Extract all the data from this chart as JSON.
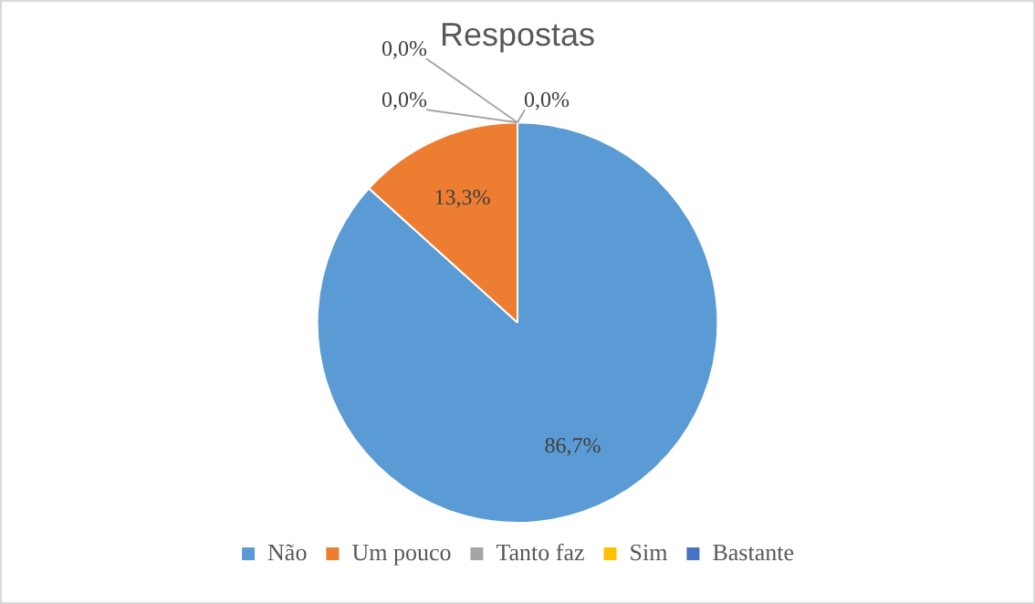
{
  "chart_data": {
    "type": "pie",
    "title": "Respostas",
    "categories": [
      "Não",
      "Um pouco",
      "Tanto faz",
      "Sim",
      "Bastante"
    ],
    "values": [
      86.7,
      13.3,
      0,
      0,
      0
    ],
    "colors": [
      "#5b9bd5",
      "#ed7d31",
      "#a5a5a5",
      "#ffc000",
      "#4472c4"
    ],
    "value_labels": [
      "86,7%",
      "13,3%",
      "0,0%",
      "0,0%",
      "0,0%"
    ],
    "legend": "bottom"
  }
}
